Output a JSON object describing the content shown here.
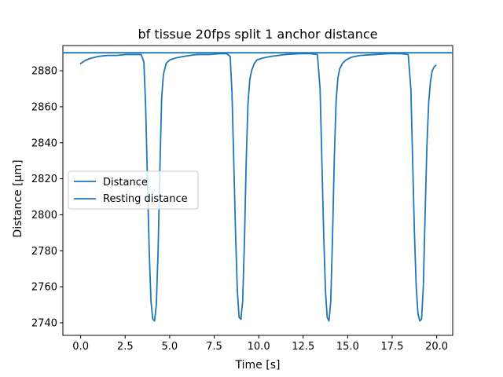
{
  "chart_data": {
    "type": "line",
    "title": "bf tissue 20fps split 1 anchor distance",
    "xlabel": "Time [s]",
    "ylabel": "Distance [µm]",
    "xlim": [
      -1.0,
      20.9
    ],
    "ylim": [
      2733,
      2894
    ],
    "xticks": [
      0.0,
      2.5,
      5.0,
      7.5,
      10.0,
      12.5,
      15.0,
      17.5,
      20.0
    ],
    "xtick_labels": [
      "0.0",
      "2.5",
      "5.0",
      "7.5",
      "10.0",
      "12.5",
      "15.0",
      "17.5",
      "20.0"
    ],
    "yticks": [
      2740,
      2760,
      2780,
      2800,
      2820,
      2840,
      2860,
      2880
    ],
    "ytick_labels": [
      "2740",
      "2760",
      "2780",
      "2800",
      "2820",
      "2840",
      "2860",
      "2880"
    ],
    "grid": false,
    "legend_position": "center-left",
    "color": "#1f77b4",
    "series": [
      {
        "name": "Distance",
        "x": [
          0.0,
          0.3,
          0.6,
          1.0,
          1.5,
          2.0,
          2.5,
          3.0,
          3.4,
          3.55,
          3.65,
          3.75,
          3.85,
          3.95,
          4.05,
          4.15,
          4.25,
          4.35,
          4.45,
          4.55,
          4.65,
          4.8,
          5.0,
          5.3,
          5.8,
          6.5,
          7.2,
          7.8,
          8.2,
          8.4,
          8.5,
          8.6,
          8.7,
          8.8,
          8.9,
          9.0,
          9.1,
          9.2,
          9.3,
          9.4,
          9.5,
          9.6,
          9.75,
          9.9,
          10.2,
          10.7,
          11.5,
          12.3,
          12.9,
          13.3,
          13.45,
          13.55,
          13.65,
          13.75,
          13.85,
          13.95,
          14.05,
          14.15,
          14.25,
          14.35,
          14.45,
          14.55,
          14.7,
          14.9,
          15.2,
          15.7,
          16.5,
          17.3,
          18.0,
          18.4,
          18.55,
          18.65,
          18.75,
          18.85,
          18.95,
          19.05,
          19.15,
          19.25,
          19.35,
          19.45,
          19.55,
          19.65,
          19.75,
          19.85,
          19.95
        ],
        "y": [
          2884,
          2886,
          2887,
          2888,
          2888.5,
          2888.5,
          2889,
          2889,
          2889,
          2885,
          2860,
          2820,
          2780,
          2752,
          2742,
          2741,
          2750,
          2780,
          2825,
          2865,
          2878,
          2884,
          2886,
          2887,
          2888,
          2889,
          2889,
          2889.5,
          2889.5,
          2888,
          2868,
          2830,
          2790,
          2758,
          2743,
          2742,
          2752,
          2785,
          2830,
          2862,
          2875,
          2880,
          2884,
          2886,
          2887,
          2888,
          2889,
          2889.5,
          2889.5,
          2889,
          2870,
          2830,
          2790,
          2758,
          2743,
          2741,
          2752,
          2788,
          2832,
          2863,
          2876,
          2881,
          2884,
          2886,
          2887.5,
          2888.5,
          2889,
          2889.5,
          2889.5,
          2889,
          2870,
          2830,
          2790,
          2760,
          2745,
          2741,
          2742,
          2760,
          2800,
          2838,
          2862,
          2874,
          2880,
          2882,
          2883
        ]
      },
      {
        "name": "Resting distance",
        "x": [
          -1.0,
          20.9
        ],
        "y": [
          2890,
          2890
        ]
      }
    ]
  }
}
